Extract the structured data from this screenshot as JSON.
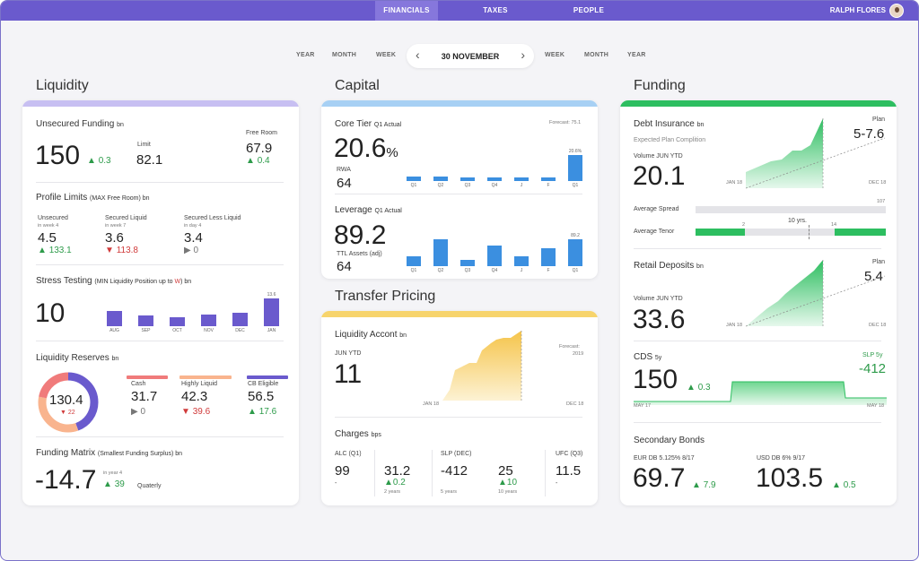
{
  "nav": {
    "financials": "FINANCIALS",
    "taxes": "TAXES",
    "people": "PEOPLE",
    "user": "RALPH FLORES"
  },
  "datenav": {
    "left": [
      "YEAR",
      "MONTH",
      "WEEK"
    ],
    "date": "30 NOVEMBER",
    "right": [
      "WEEK",
      "MONTH",
      "YEAR"
    ],
    "prev": "‹",
    "next": "›"
  },
  "sections": {
    "liquidity": "Liquidity",
    "capital": "Capital",
    "funding": "Funding",
    "transfer": "Transfer Pricing"
  },
  "colors": {
    "purple": "#6a5acd",
    "blue": "#3b8fe0",
    "green": "#2dbe60",
    "yellow": "#f4c243"
  },
  "liquidity": {
    "unsecured": {
      "title": "Unsecured Funding",
      "unit": "bn",
      "value": "150",
      "delta": "0.3",
      "limit_label": "Limit",
      "limit": "82.1",
      "free_label": "Free Room",
      "free": "67.9",
      "free_delta": "0.4"
    },
    "profile": {
      "title": "Profile Limits",
      "sub": "(MAX Free Room) bn",
      "items": [
        {
          "label": "Unsecured",
          "sub": "in week 4",
          "value": "4.5",
          "delta": "133.1",
          "dir": "up"
        },
        {
          "label": "Secured Liquid",
          "sub": "in week 7",
          "value": "3.6",
          "delta": "113.8",
          "dir": "dn"
        },
        {
          "label": "Secured Less Liquid",
          "sub": "in day 4",
          "value": "3.4",
          "delta": "0",
          "dir": "nt"
        }
      ]
    },
    "stress": {
      "title": "Stress Testing",
      "sub1": "(MIN Liquidity Position up to",
      "sub2": "W",
      "sub3": ") bn",
      "value": "10",
      "top_label": "13.6"
    },
    "reserves": {
      "title": "Liquidity Reserves",
      "unit": "bn",
      "center": "130.4",
      "center_delta": "22",
      "items": [
        {
          "label": "Cash",
          "value": "31.7",
          "delta": "0",
          "dir": "nt",
          "color": "#f07b7b"
        },
        {
          "label": "Highly Liquid",
          "value": "42.3",
          "delta": "39.6",
          "dir": "dn",
          "color": "#f9b48e"
        },
        {
          "label": "CB Eligible",
          "value": "56.5",
          "delta": "17.6",
          "dir": "up",
          "color": "#6a5acd"
        }
      ]
    },
    "matrix": {
      "title": "Funding Matrix",
      "sub": "(Smallest Funding Surplus) bn",
      "value": "-14.7",
      "week": "in year 4",
      "delta": "39",
      "period": "Quaterly"
    }
  },
  "capital": {
    "core": {
      "title": "Core Tier",
      "sub": "Q1 Actual",
      "forecast": "Forecast: 75.1",
      "value": "20.6",
      "pct": "%",
      "rwa_label": "RWA",
      "rwa": "64",
      "top_label": "20.6%"
    },
    "leverage": {
      "title": "Leverage",
      "sub": "Q1 Actual",
      "value": "89.2",
      "ttl_label": "TTL Assets (adj)",
      "ttl": "64",
      "top_label": "89.2"
    }
  },
  "transfer": {
    "account": {
      "title": "Liquidity Accont",
      "unit": "bn",
      "label": "JUN YTD",
      "value": "11",
      "forecast": "Forecast:",
      "year": "2019",
      "start": "JAN 18",
      "end": "DEC 18"
    },
    "charges": {
      "title": "Charges",
      "unit": "bps",
      "alc_label": "ALC (Q1)",
      "alc": "99",
      "alc_sub": "-",
      "alc2": "31.2",
      "alc2_delta": "0.2",
      "alc2_sub": "2 years",
      "slp_label": "SLP (DEC)",
      "slp": "-412",
      "slp_sub": "5 years",
      "slp2": "25",
      "slp2_delta": "10",
      "slp2_sub": "10 years",
      "ufc_label": "UFC (Q3)",
      "ufc": "11.5",
      "ufc_sub": "-"
    }
  },
  "funding": {
    "debt": {
      "title": "Debt Insurance",
      "unit": "bn",
      "sub": "Expected Plan Complition",
      "vol_label": "Volume JUN YTD",
      "value": "20.1",
      "plan_label": "Plan",
      "plan": "5-7.6",
      "start": "JAN 18",
      "end": "DEC 18",
      "spread_label": "Average Spread",
      "spread_max": "107",
      "tenor_label": "Average Tenor",
      "tenor_a": "2",
      "tenor_mid": "10 yrs.",
      "tenor_b": "14"
    },
    "retail": {
      "title": "Retail Deposits",
      "unit": "bn",
      "vol_label": "Volume JUN YTD",
      "value": "33.6",
      "plan_label": "Plan",
      "plan": "5.4",
      "start": "JAN 18",
      "end": "DEC 18"
    },
    "cds": {
      "title": "CDS",
      "unit": "5y",
      "value": "150",
      "delta": "0.3",
      "slp_label": "SLP 5y",
      "slp": "-412",
      "start": "MAY 17",
      "end": "MAY 18"
    },
    "bonds": {
      "title": "Secondary Bonds",
      "eur_label": "EUR DB 5.125% 8/17",
      "eur": "69.7",
      "eur_delta": "7.9",
      "usd_label": "USD DB 6% 9/17",
      "usd": "103.5",
      "usd_delta": "0.5"
    }
  },
  "chart_data": [
    {
      "type": "bar",
      "title": "Stress Testing",
      "categories": [
        "AUG",
        "SEP",
        "OCT",
        "NOV",
        "DEC",
        "JAN"
      ],
      "values": [
        7.5,
        5.2,
        4.5,
        5.5,
        6.5,
        13.6
      ],
      "ylim": [
        0,
        14
      ]
    },
    {
      "type": "bar",
      "title": "Core Tier",
      "categories": [
        "Q1",
        "Q2",
        "Q3",
        "Q4",
        "J",
        "F",
        "Q1"
      ],
      "values": [
        3.5,
        3.5,
        3,
        2.5,
        2.5,
        3,
        20.6
      ],
      "ylim": [
        0,
        21
      ]
    },
    {
      "type": "bar",
      "title": "Leverage",
      "categories": [
        "Q1",
        "Q2",
        "Q3",
        "Q4",
        "J",
        "F",
        "Q1"
      ],
      "values": [
        33,
        89,
        20,
        70,
        33,
        60,
        89.2
      ],
      "ylim": [
        0,
        90
      ]
    }
  ]
}
